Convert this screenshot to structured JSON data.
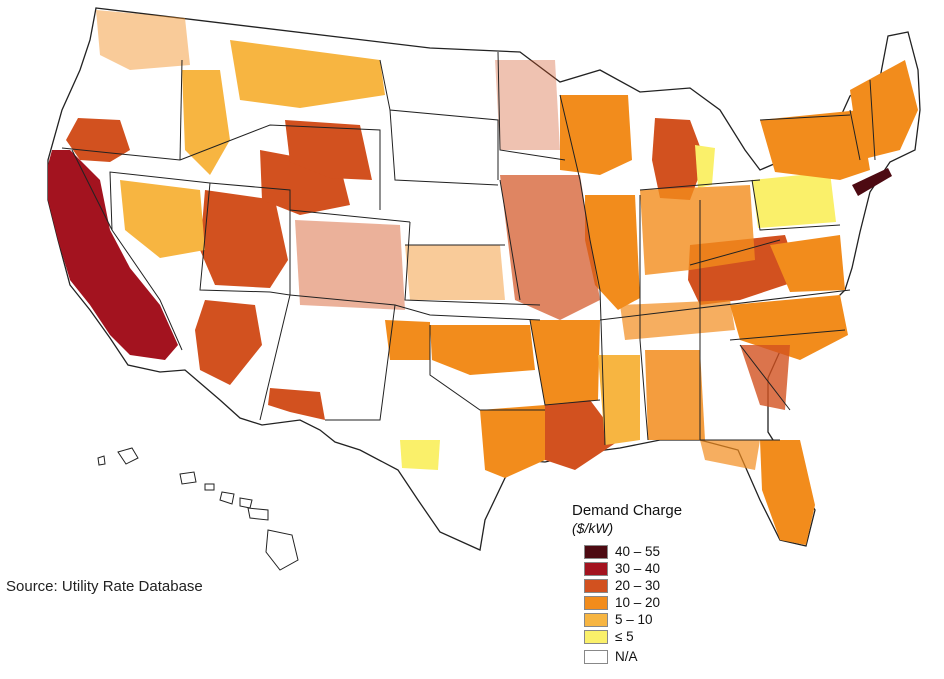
{
  "legend": {
    "title": "Demand Charge",
    "subtitle": "($/kW)",
    "items": [
      {
        "label": "40 – 55",
        "color": "#4d0a12"
      },
      {
        "label": "30 – 40",
        "color": "#a3131f"
      },
      {
        "label": "20 – 30",
        "color": "#d2511f"
      },
      {
        "label": "10 – 20",
        "color": "#f28c1c"
      },
      {
        "label": "5 – 10",
        "color": "#f7b541"
      },
      {
        "label": "≤ 5",
        "color": "#faf06a"
      },
      {
        "label": "N/A",
        "color": "#ffffff"
      }
    ]
  },
  "source": "Source: Utility Rate Database",
  "map": {
    "subject": "Demand charges by utility service territory, contiguous United States, Alaska and Hawaii",
    "state_boundary_color": "#222222",
    "regions": [
      {
        "area": "California",
        "category": "30 – 40"
      },
      {
        "area": "New York City / Long Island",
        "category": "40 – 55"
      },
      {
        "area": "Michigan Lower Peninsula",
        "category": "20 – 30"
      },
      {
        "area": "Nevada (east)",
        "category": "20 – 30"
      },
      {
        "area": "Utah",
        "category": "20 – 30"
      },
      {
        "area": "Arizona (west)",
        "category": "20 – 30"
      },
      {
        "area": "Wyoming / Colorado (west)",
        "category": "20 – 30"
      },
      {
        "area": "Oregon (west)",
        "category": "20 – 30"
      },
      {
        "area": "Kentucky / West Virginia",
        "category": "20 – 30"
      },
      {
        "area": "Louisiana (south)",
        "category": "20 – 30"
      },
      {
        "area": "Illinois",
        "category": "10 – 20"
      },
      {
        "area": "Wisconsin",
        "category": "10 – 20"
      },
      {
        "area": "Arkansas",
        "category": "10 – 20"
      },
      {
        "area": "Oklahoma",
        "category": "10 – 20"
      },
      {
        "area": "North Carolina",
        "category": "10 – 20"
      },
      {
        "area": "New England / New York",
        "category": "10 – 20"
      },
      {
        "area": "Florida",
        "category": "10 – 20"
      },
      {
        "area": "Pennsylvania",
        "category": "≤ 5"
      },
      {
        "area": "Montana / Idaho",
        "category": "5 – 10"
      },
      {
        "area": "Mississippi",
        "category": "5 – 10"
      }
    ]
  }
}
